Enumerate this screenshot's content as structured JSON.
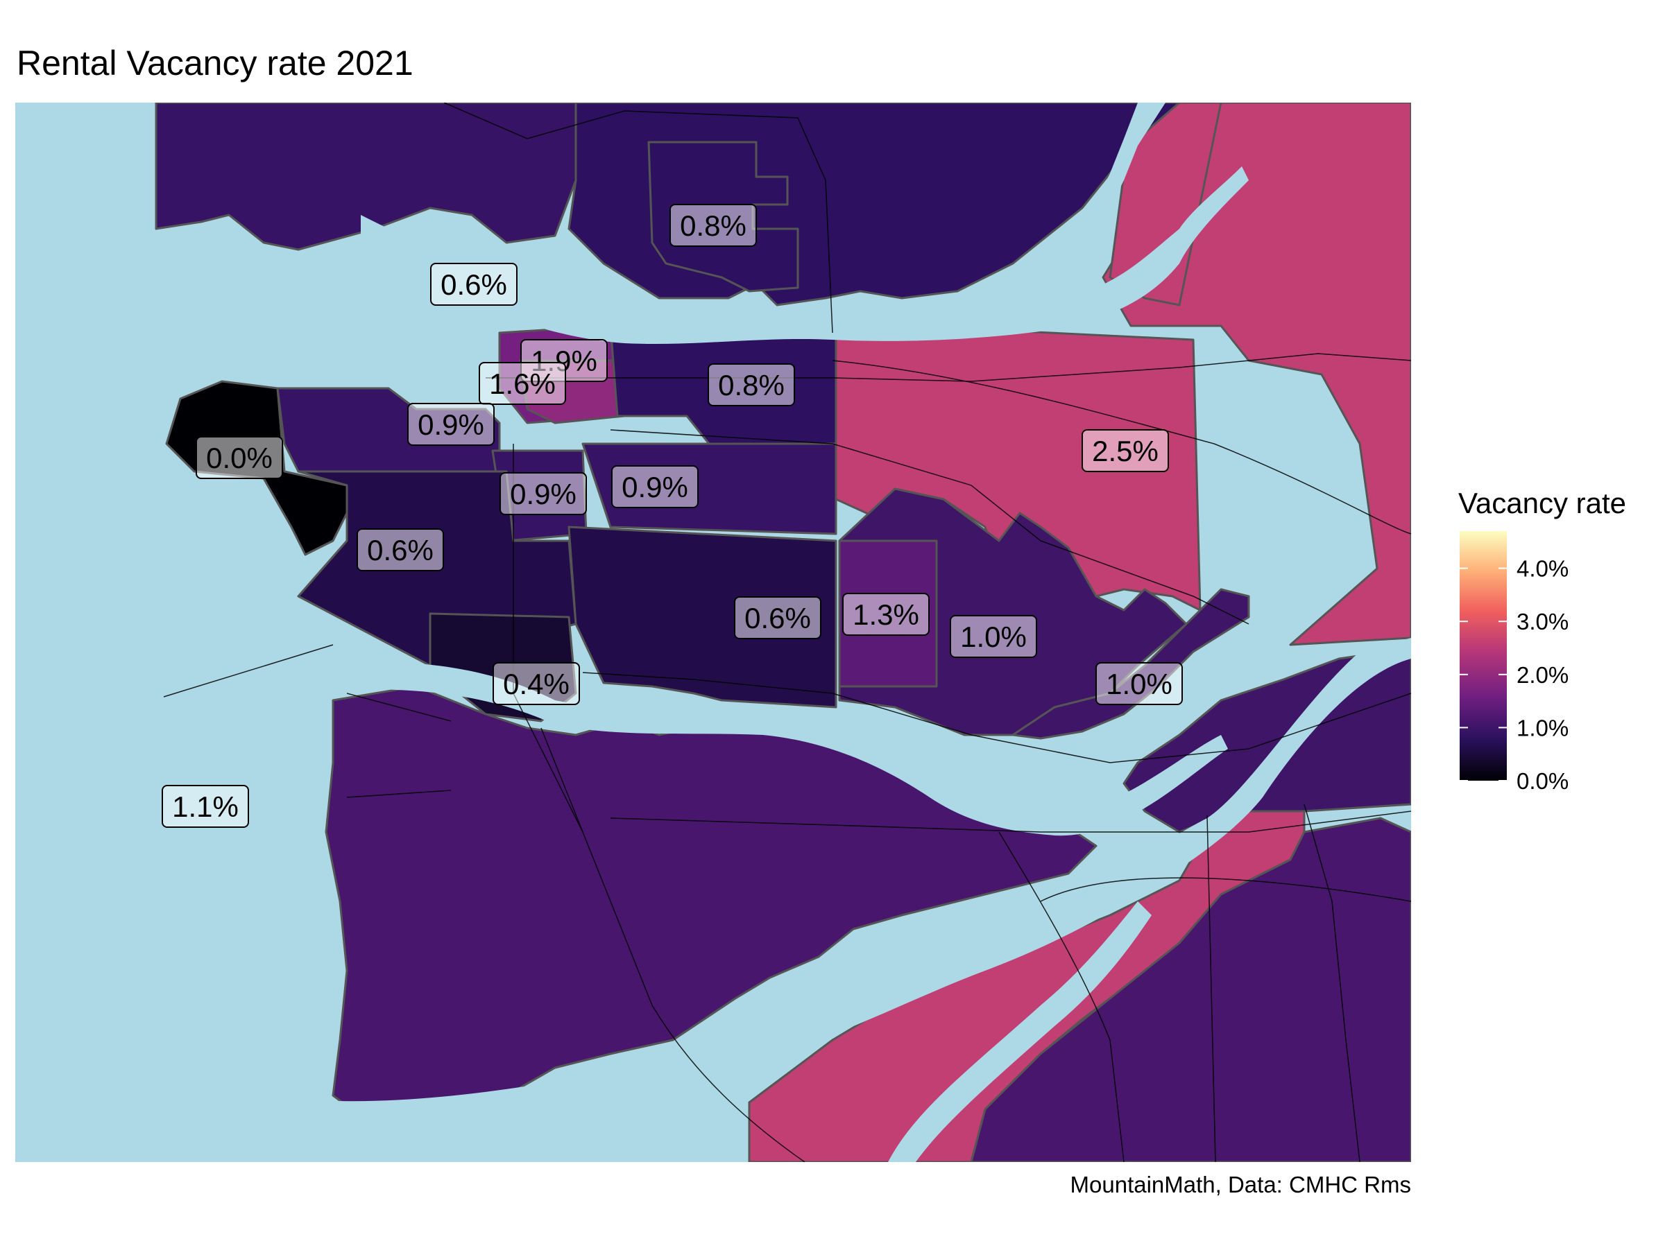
{
  "title": "Rental Vacancy rate 2021",
  "caption": "MountainMath, Data: CMHC Rms",
  "legend": {
    "title": "Vacancy rate",
    "ticks": [
      "0.0%",
      "1.0%",
      "2.0%",
      "3.0%",
      "4.0%"
    ],
    "tick_values": [
      0,
      1,
      2,
      3,
      4
    ],
    "range": [
      0,
      4.7
    ],
    "palette": [
      "#000004",
      "#2c115f",
      "#721f81",
      "#b73779",
      "#f1605d",
      "#feb078",
      "#fcfdbf"
    ]
  },
  "colors": {
    "water": "#add8e6",
    "background": "#ffffff",
    "zone_border": "#555555",
    "road_line": "#000000"
  },
  "map_data": {
    "type": "choropleth",
    "value_unit": "%",
    "zones": [
      {
        "label": "0.0%",
        "value": 0.0
      },
      {
        "label": "0.6%",
        "value": 0.6
      },
      {
        "label": "0.6%",
        "value": 0.6
      },
      {
        "label": "0.8%",
        "value": 0.8
      },
      {
        "label": "0.8%",
        "value": 0.8
      },
      {
        "label": "1.9%",
        "value": 1.9
      },
      {
        "label": "1.6%",
        "value": 1.6
      },
      {
        "label": "0.9%",
        "value": 0.9
      },
      {
        "label": "0.9%",
        "value": 0.9
      },
      {
        "label": "0.9%",
        "value": 0.9
      },
      {
        "label": "0.6%",
        "value": 0.6
      },
      {
        "label": "0.4%",
        "value": 0.4
      },
      {
        "label": "1.3%",
        "value": 1.3
      },
      {
        "label": "1.0%",
        "value": 1.0
      },
      {
        "label": "1.0%",
        "value": 1.0
      },
      {
        "label": "2.5%",
        "value": 2.5
      },
      {
        "label": "1.1%",
        "value": 1.1
      }
    ]
  }
}
